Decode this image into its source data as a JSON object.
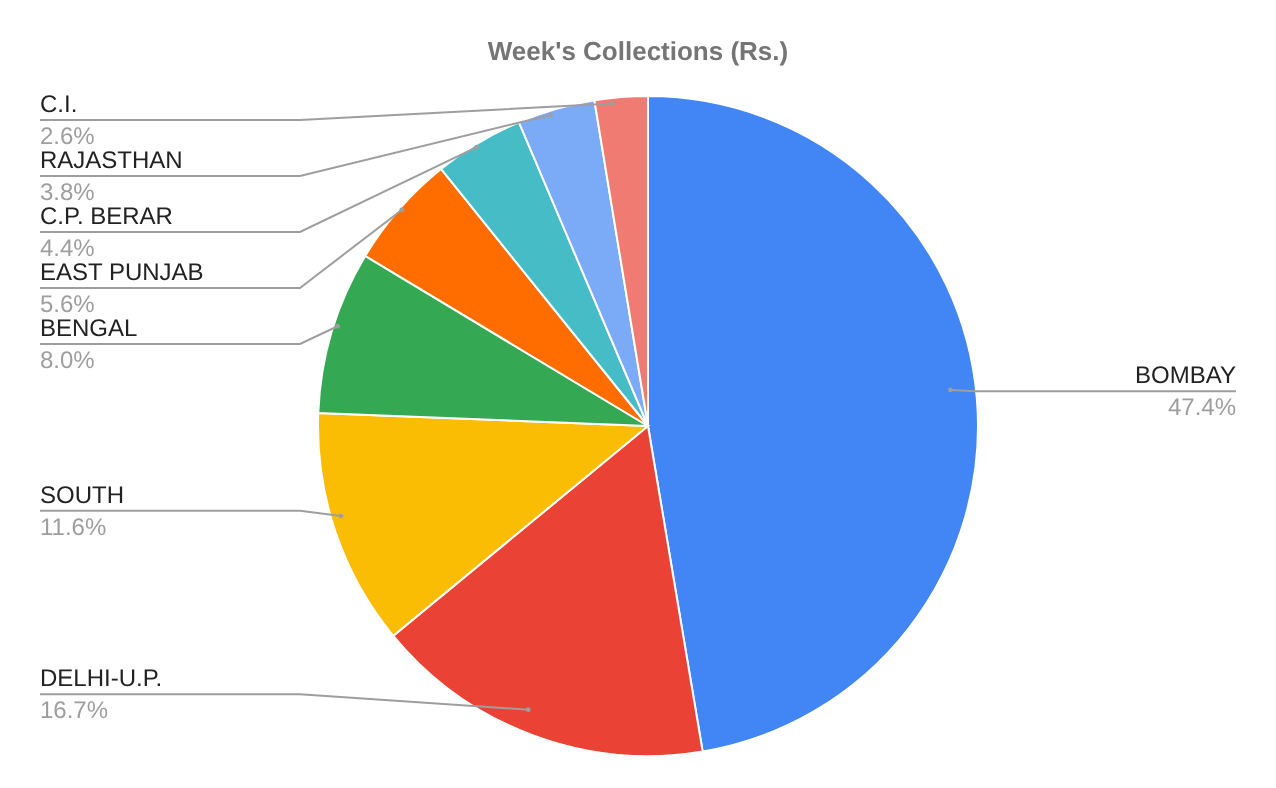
{
  "chart_data": {
    "type": "pie",
    "title": "Week's Collections (Rs.)",
    "categories": [
      "BOMBAY",
      "DELHI-U.P.",
      "SOUTH",
      "BENGAL",
      "EAST PUNJAB",
      "C.P. BERAR",
      "RAJASTHAN",
      "C.I."
    ],
    "values": [
      47.4,
      16.7,
      11.6,
      8.0,
      5.6,
      4.4,
      3.8,
      2.6
    ],
    "colors": [
      "#4285f4",
      "#ea4335",
      "#fbbc04",
      "#34a853",
      "#ff6d01",
      "#46bdc6",
      "#7baaf7",
      "#f07b72"
    ],
    "value_labels": [
      "47.4%",
      "16.7%",
      "11.6%",
      "8.0%",
      "5.6%",
      "4.4%",
      "3.8%",
      "2.6%"
    ]
  }
}
